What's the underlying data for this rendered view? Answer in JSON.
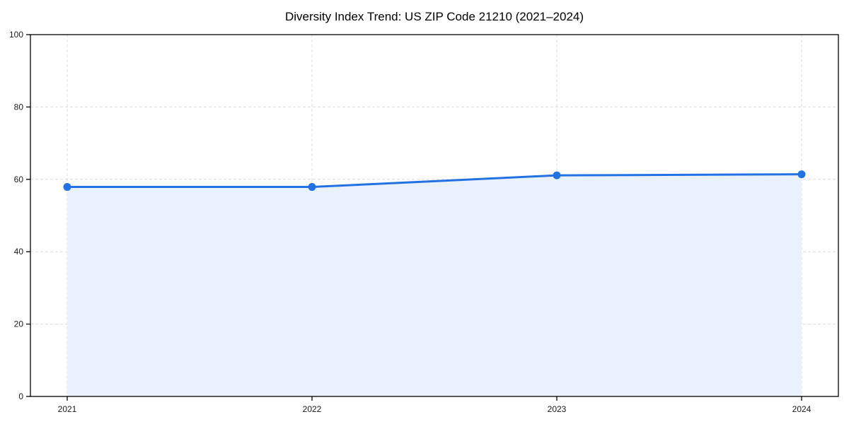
{
  "chart_data": {
    "type": "area",
    "title": "Diversity Index Trend: US ZIP Code 21210 (2021–2024)",
    "series_name": "Diversity Index",
    "x": [
      2021,
      2022,
      2023,
      2024
    ],
    "values": [
      57.9,
      57.9,
      61.1,
      61.4
    ],
    "xlabel": "",
    "ylabel": "",
    "ylim": [
      0,
      100
    ],
    "yticks": [
      0,
      20,
      40,
      60,
      80,
      100
    ],
    "xticks": [
      "2021",
      "2022",
      "2023",
      "2024"
    ],
    "grid": "dashed-both-axes",
    "legend_position": "none",
    "colors": {
      "line": "#2272e3",
      "marker": "#2272e3",
      "fill": "#e9f1fc",
      "grid": "#dcdcdc",
      "axis": "#000000",
      "background": "#ffffff"
    }
  }
}
